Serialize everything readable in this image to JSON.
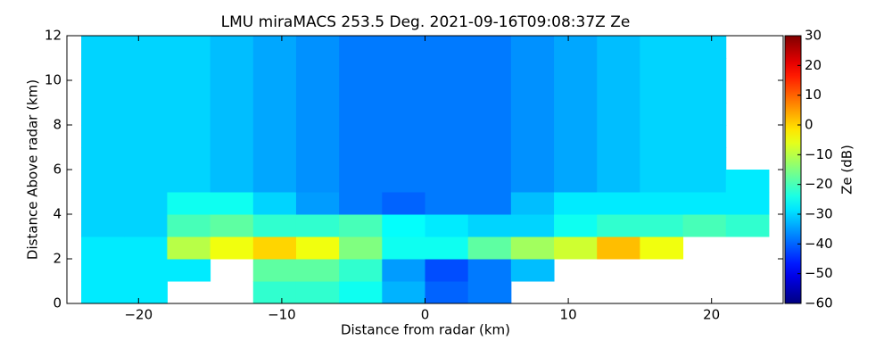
{
  "chart_data": {
    "type": "heatmap",
    "title": "LMU miraMACS 253.5 Deg. 2021-09-16T09:08:37Z  Ze",
    "x_label": "Distance from radar (km)",
    "y_label": "Distance Above radar  (km)",
    "colorbar_label": "Ze (dB)",
    "colormap": "jet",
    "x_edges": [
      -24,
      -21,
      -18,
      -15,
      -12,
      -9,
      -6,
      -3,
      0,
      3,
      6,
      9,
      12,
      15,
      18,
      21,
      24
    ],
    "y_edges": [
      0,
      1,
      2,
      3,
      4,
      5,
      6,
      7,
      8,
      9,
      10,
      11,
      12
    ],
    "z": [
      [
        -28,
        -28,
        null,
        null,
        -22,
        -22,
        -25,
        -33,
        -40,
        -38,
        null,
        null,
        null,
        null,
        null,
        null
      ],
      [
        -28,
        -28,
        -28,
        null,
        -18,
        -18,
        -22,
        -35,
        -42,
        -38,
        -32,
        null,
        null,
        null,
        null,
        null
      ],
      [
        -28,
        -28,
        -10,
        -5,
        0,
        -5,
        -15,
        -25,
        -25,
        -18,
        -12,
        -8,
        2,
        -5,
        null,
        null
      ],
      [
        -30,
        -30,
        -20,
        -18,
        -22,
        -22,
        -20,
        -26,
        -28,
        -30,
        -30,
        -25,
        -22,
        -22,
        -20,
        -22
      ],
      [
        -30,
        -30,
        -25,
        -25,
        -30,
        -35,
        -38,
        -40,
        -38,
        -38,
        -32,
        -28,
        -28,
        -28,
        -28,
        -28
      ],
      [
        -30,
        -30,
        -30,
        -32,
        -34,
        -36,
        -38,
        -38,
        -38,
        -38,
        -36,
        -34,
        -32,
        -30,
        -30,
        -28
      ],
      [
        -30,
        -30,
        -30,
        -32,
        -34,
        -36,
        -38,
        -38,
        -38,
        -38,
        -36,
        -34,
        -32,
        -30,
        -30,
        null
      ],
      [
        -30,
        -30,
        -30,
        -32,
        -34,
        -36,
        -38,
        -38,
        -38,
        -38,
        -36,
        -34,
        -32,
        -30,
        -30,
        null
      ],
      [
        -30,
        -30,
        -30,
        -32,
        -34,
        -36,
        -38,
        -38,
        -38,
        -38,
        -36,
        -34,
        -32,
        -30,
        -30,
        null
      ],
      [
        -30,
        -30,
        -30,
        -32,
        -34,
        -36,
        -38,
        -38,
        -38,
        -38,
        -36,
        -34,
        -32,
        -30,
        -30,
        null
      ],
      [
        -30,
        -30,
        -30,
        -32,
        -34,
        -36,
        -38,
        -38,
        -38,
        -38,
        -36,
        -34,
        -32,
        -30,
        -30,
        null
      ],
      [
        -30,
        -30,
        -30,
        -32,
        -34,
        -36,
        -38,
        -38,
        -38,
        -38,
        -36,
        -34,
        -32,
        -30,
        -30,
        null
      ]
    ],
    "xlim": [
      -25,
      25
    ],
    "xticks": [
      {
        "value": -20,
        "label": "−20"
      },
      {
        "value": -10,
        "label": "−10"
      },
      0,
      10,
      20
    ],
    "ylim": [
      0,
      12
    ],
    "yticks": [
      0,
      2,
      4,
      6,
      8,
      10,
      12
    ],
    "zlim": [
      -60,
      30
    ],
    "zticks": [
      {
        "value": -60,
        "label": "−60"
      },
      {
        "value": -50,
        "label": "−50"
      },
      {
        "value": -40,
        "label": "−40"
      },
      {
        "value": -30,
        "label": "−30"
      },
      {
        "value": -20,
        "label": "−20"
      },
      {
        "value": -10,
        "label": "−10"
      },
      0,
      10,
      20,
      30
    ]
  }
}
